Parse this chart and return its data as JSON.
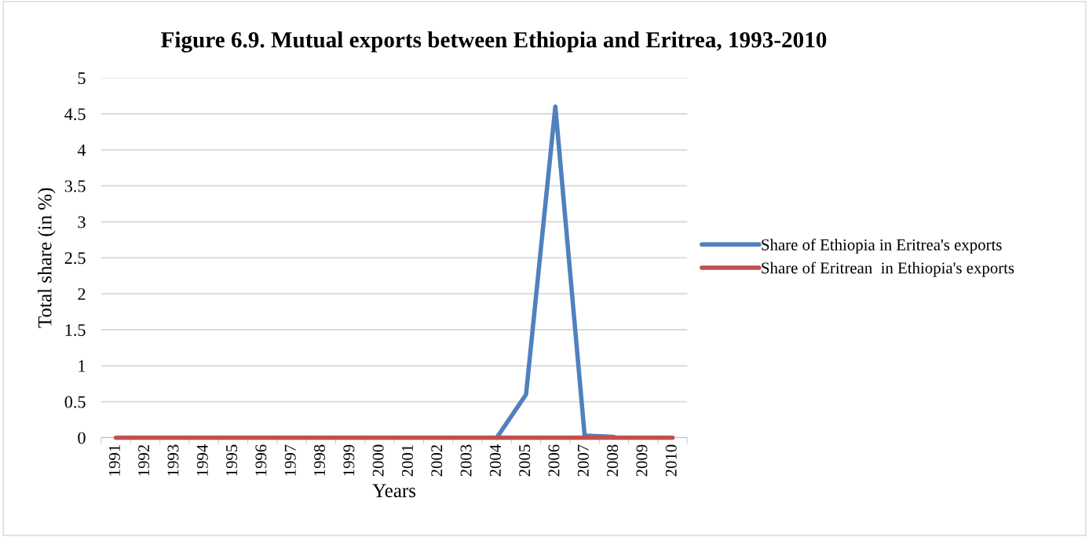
{
  "chart_data": {
    "type": "line",
    "title": "Figure 6.9. Mutual exports between Ethiopia and Eritrea, 1993-2010",
    "xlabel": "Years",
    "ylabel": "Total share (in %)",
    "categories": [
      "1991",
      "1992",
      "1993",
      "1994",
      "1995",
      "1996",
      "1997",
      "1998",
      "1999",
      "2000",
      "2001",
      "2002",
      "2003",
      "2004",
      "2005",
      "2006",
      "2007",
      "2008",
      "2009",
      "2010"
    ],
    "series": [
      {
        "name": "Share of Ethiopia in Eritrea's exports",
        "color": "#4f81bd",
        "values": [
          null,
          null,
          null,
          null,
          null,
          null,
          null,
          null,
          null,
          null,
          null,
          null,
          null,
          0,
          0.6,
          4.6,
          0.03,
          0.01,
          null,
          null
        ]
      },
      {
        "name": "Share of Eritrean  in Ethiopia's exports",
        "color": "#c0504d",
        "values": [
          0,
          0,
          0,
          0,
          0,
          0,
          0,
          0,
          0,
          0,
          0,
          0,
          0,
          0,
          0,
          0,
          0,
          0,
          0,
          0
        ]
      }
    ],
    "ylim": [
      0,
      5
    ],
    "yticks": [
      0,
      0.5,
      1,
      1.5,
      2,
      2.5,
      3,
      3.5,
      4,
      4.5,
      5
    ],
    "grid": "y",
    "legend": "right",
    "marker": "none",
    "line_style": "solid"
  }
}
